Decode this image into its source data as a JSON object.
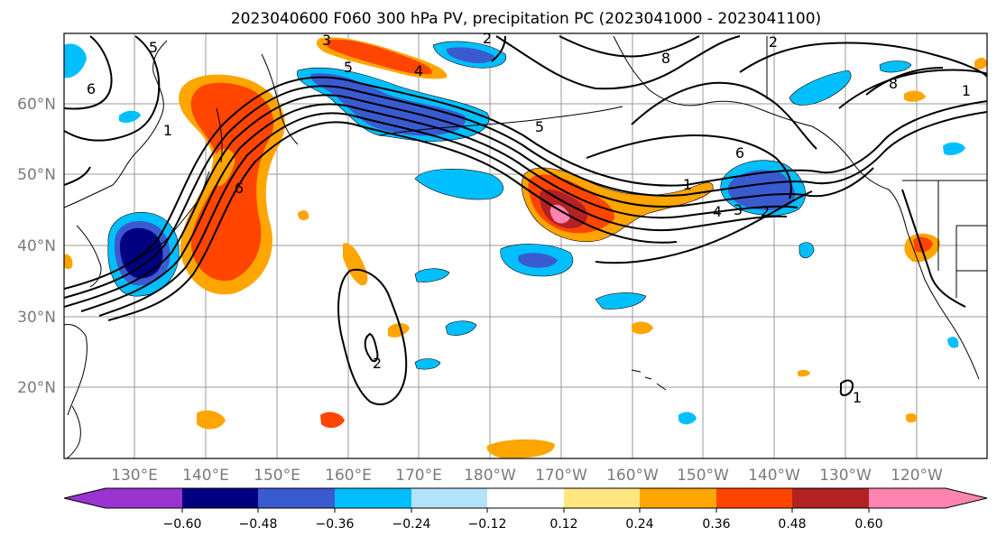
{
  "title": "2023040600 F060 300 hPa PV, precipitation PC (2023041000 - 2023041100)",
  "map": {
    "lon_labels": [
      "130°E",
      "140°E",
      "150°E",
      "160°E",
      "170°E",
      "180°W",
      "170°W",
      "160°W",
      "150°W",
      "140°W",
      "130°W",
      "120°W"
    ],
    "lat_labels": [
      "60°N",
      "50°N",
      "40°N",
      "30°N",
      "20°N"
    ]
  },
  "contour_labels": [
    "5",
    "6",
    "1",
    "6",
    "5",
    "2",
    "8",
    "5",
    "4",
    "3",
    "1",
    "6",
    "4",
    "3",
    "2",
    "2",
    "1",
    "8",
    "2",
    "1"
  ],
  "colorbar": {
    "ticks": [
      "−0.60",
      "−0.48",
      "−0.36",
      "−0.24",
      "−0.12",
      "0.12",
      "0.24",
      "0.36",
      "0.48",
      "0.60"
    ],
    "colors": [
      "#9a34d0",
      "#000080",
      "#3a5bd0",
      "#00bfff",
      "#b3e2fb",
      "#ffffff",
      "#ffe680",
      "#ffa500",
      "#ff4500",
      "#b22222",
      "#ff85b0"
    ]
  },
  "shading_colors": {
    "neg_light": "#b3e2fb",
    "neg_mid": "#00bfff",
    "neg_strong": "#3a5bd0",
    "neg_max": "#000080",
    "pos_light": "#ffe680",
    "pos_mid": "#ffa500",
    "pos_strong": "#ff4500",
    "pos_max": "#b22222",
    "pos_peak": "#ff85b0"
  }
}
